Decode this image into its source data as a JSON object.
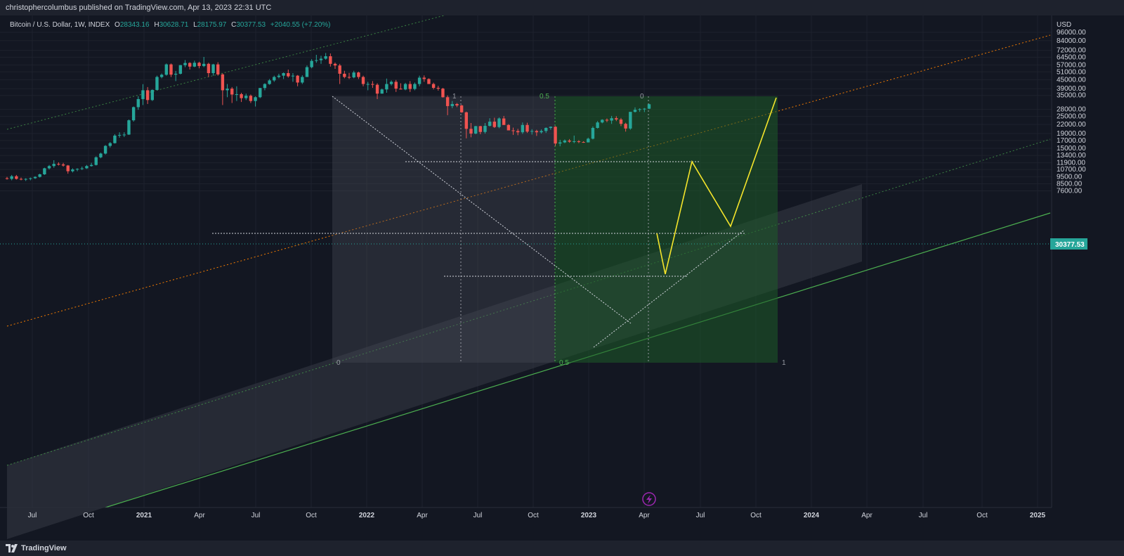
{
  "header": {
    "published": "christophercolumbus published on TradingView.com, Apr 13, 2023 22:31 UTC"
  },
  "legend": {
    "symbol": "Bitcoin / U.S. Dollar, 1W, INDEX",
    "o_label": "O",
    "o": "28343.16",
    "h_label": "H",
    "h": "30628.71",
    "l_label": "L",
    "l": "28175.97",
    "c_label": "C",
    "c": "30377.53",
    "change": "+2040.55 (+7.20%)"
  },
  "footer": {
    "brand": "TradingView"
  },
  "colors": {
    "background": "#131722",
    "up": "#26a69a",
    "down": "#ef5350",
    "channel_green": "#4caf50",
    "channel_orange": "#f57c00",
    "projection": "#f5e52b",
    "fib_green": "#2e7d32",
    "price_label_bg": "#26a69a"
  },
  "chart_data": {
    "type": "candlestick",
    "axis_unit": "USD",
    "scale": "log",
    "ylim": [
      7000,
      110000
    ],
    "y_ticks": [
      "96000.00",
      "84000.00",
      "72000.00",
      "64500.00",
      "57000.00",
      "51000.00",
      "45000.00",
      "39000.00",
      "35000.00",
      "28000.00",
      "25000.00",
      "22000.00",
      "19000.00",
      "17000.00",
      "15000.00",
      "13400.00",
      "11900.00",
      "10700.00",
      "9500.00",
      "8500.00",
      "7600.00"
    ],
    "x_ticks": [
      "Jul",
      "Oct",
      "2021",
      "Apr",
      "Jul",
      "Oct",
      "2022",
      "Apr",
      "Jul",
      "Oct",
      "2023",
      "Apr",
      "Jul",
      "Oct",
      "2024",
      "Apr",
      "Jul",
      "Oct",
      "2025"
    ],
    "last_price": "30377.53",
    "fib_labels": {
      "top_left": "1",
      "top_mid": "0.5",
      "top_right": "0",
      "bottom_left": "0",
      "bottom_mid": "0.5",
      "bottom_right": "1"
    },
    "candles_approx": [
      [
        9300,
        9500,
        9100,
        9200
      ],
      [
        9200,
        9800,
        9000,
        9600
      ],
      [
        9600,
        9800,
        9100,
        9200
      ],
      [
        9200,
        9400,
        9000,
        9100
      ],
      [
        9100,
        9300,
        8900,
        9200
      ],
      [
        9200,
        9400,
        9000,
        9300
      ],
      [
        9300,
        9600,
        9200,
        9500
      ],
      [
        9500,
        10000,
        9400,
        9900
      ],
      [
        9900,
        11000,
        9800,
        10900
      ],
      [
        10900,
        11500,
        10700,
        11300
      ],
      [
        11300,
        12400,
        11000,
        11700
      ],
      [
        11700,
        12000,
        11400,
        11600
      ],
      [
        11600,
        11900,
        11200,
        11400
      ],
      [
        11400,
        11500,
        10000,
        10400
      ],
      [
        10400,
        10900,
        10200,
        10700
      ],
      [
        10700,
        10900,
        10400,
        10800
      ],
      [
        10800,
        11200,
        10600,
        10900
      ],
      [
        10900,
        11500,
        10800,
        11300
      ],
      [
        11300,
        11900,
        11200,
        11500
      ],
      [
        11500,
        13200,
        11400,
        13000
      ],
      [
        13000,
        14000,
        12800,
        13800
      ],
      [
        13800,
        15800,
        13600,
        15600
      ],
      [
        15600,
        16600,
        15200,
        16300
      ],
      [
        16300,
        18800,
        16200,
        18400
      ],
      [
        18400,
        19400,
        17800,
        18600
      ],
      [
        18600,
        19400,
        18000,
        18700
      ],
      [
        18700,
        23800,
        18600,
        23500
      ],
      [
        23500,
        29300,
        23000,
        29000
      ],
      [
        29000,
        34500,
        27800,
        33000
      ],
      [
        33000,
        41900,
        30000,
        38000
      ],
      [
        38000,
        40000,
        30500,
        32500
      ],
      [
        32500,
        38500,
        32000,
        38200
      ],
      [
        38200,
        48000,
        38000,
        47000
      ],
      [
        47000,
        49700,
        46000,
        48700
      ],
      [
        48700,
        58300,
        48000,
        57500
      ],
      [
        57500,
        58300,
        47000,
        48800
      ],
      [
        48800,
        51800,
        44000,
        49500
      ],
      [
        49500,
        57000,
        49000,
        56800
      ],
      [
        56800,
        61600,
        55000,
        58800
      ],
      [
        58800,
        59500,
        53000,
        55500
      ],
      [
        55500,
        61000,
        55000,
        59000
      ],
      [
        59000,
        60000,
        54000,
        56000
      ],
      [
        56000,
        64800,
        55000,
        58000
      ],
      [
        58000,
        59000,
        47000,
        50000
      ],
      [
        50000,
        58000,
        48000,
        57500
      ],
      [
        57500,
        59500,
        48000,
        49000
      ],
      [
        49000,
        49800,
        30000,
        38000
      ],
      [
        38000,
        42000,
        34000,
        39000
      ],
      [
        39000,
        40000,
        31000,
        35500
      ],
      [
        35500,
        40500,
        32000,
        35700
      ],
      [
        35700,
        36500,
        31500,
        33500
      ],
      [
        33500,
        36000,
        32500,
        34800
      ],
      [
        34800,
        35500,
        31000,
        32000
      ],
      [
        32000,
        34500,
        29300,
        34000
      ],
      [
        34000,
        39500,
        33500,
        39400
      ],
      [
        39400,
        42500,
        38000,
        42000
      ],
      [
        42000,
        45500,
        41500,
        44500
      ],
      [
        44500,
        48000,
        43500,
        47000
      ],
      [
        47000,
        49500,
        46000,
        48000
      ],
      [
        48000,
        50500,
        45500,
        50000
      ],
      [
        50000,
        52900,
        46500,
        47500
      ],
      [
        47500,
        50000,
        43500,
        48000
      ],
      [
        48000,
        48500,
        40500,
        43000
      ],
      [
        43000,
        48300,
        42000,
        47000
      ],
      [
        47000,
        56500,
        47000,
        55000
      ],
      [
        55000,
        62500,
        54000,
        60800
      ],
      [
        60800,
        67000,
        59000,
        61500
      ],
      [
        61500,
        66000,
        58000,
        63000
      ],
      [
        63000,
        69000,
        62000,
        65500
      ],
      [
        65500,
        68500,
        55500,
        58000
      ],
      [
        58000,
        59200,
        53500,
        56500
      ],
      [
        56500,
        58000,
        42000,
        49500
      ],
      [
        49500,
        51900,
        46000,
        47000
      ],
      [
        47000,
        50200,
        45500,
        46700
      ],
      [
        46700,
        51900,
        46000,
        50500
      ],
      [
        50500,
        51200,
        45500,
        47000
      ],
      [
        47000,
        48000,
        40500,
        42000
      ],
      [
        42000,
        43500,
        38000,
        42000
      ],
      [
        42000,
        44000,
        39500,
        41500
      ],
      [
        41500,
        42500,
        33000,
        36000
      ],
      [
        36000,
        39000,
        36000,
        38500
      ],
      [
        38500,
        45800,
        36500,
        42000
      ],
      [
        42000,
        44500,
        41000,
        43500
      ],
      [
        43500,
        44800,
        37000,
        39000
      ],
      [
        39000,
        42500,
        38500,
        38500
      ],
      [
        38500,
        42800,
        38000,
        42000
      ],
      [
        42000,
        44000,
        37000,
        38800
      ],
      [
        38800,
        43000,
        38000,
        42000
      ],
      [
        42000,
        48000,
        40500,
        46500
      ],
      [
        46500,
        48200,
        43500,
        45500
      ],
      [
        45500,
        46000,
        42500,
        42000
      ],
      [
        42000,
        42900,
        38500,
        39500
      ],
      [
        39500,
        40800,
        37800,
        39000
      ],
      [
        39000,
        39500,
        33800,
        34000
      ],
      [
        34000,
        35000,
        25500,
        29500
      ],
      [
        29500,
        32000,
        28500,
        30500
      ],
      [
        30500,
        31000,
        29000,
        29800
      ],
      [
        29800,
        30100,
        26500,
        26700
      ],
      [
        26700,
        27000,
        17600,
        20500
      ],
      [
        20500,
        22500,
        17900,
        19000
      ],
      [
        19000,
        21500,
        18800,
        21400
      ],
      [
        21400,
        21500,
        18800,
        19500
      ],
      [
        19500,
        22500,
        19000,
        21500
      ],
      [
        21500,
        24300,
        21300,
        23000
      ],
      [
        23000,
        24500,
        20800,
        21100
      ],
      [
        21100,
        24600,
        20700,
        24200
      ],
      [
        24200,
        25200,
        22600,
        21800
      ],
      [
        21800,
        22100,
        20100,
        20000
      ],
      [
        20000,
        20900,
        18600,
        19800
      ],
      [
        19800,
        20500,
        18500,
        19400
      ],
      [
        19400,
        22700,
        18900,
        21800
      ],
      [
        21800,
        22600,
        19200,
        19600
      ],
      [
        19600,
        20400,
        18700,
        19800
      ],
      [
        19800,
        20200,
        18300,
        19400
      ],
      [
        19400,
        20300,
        19000,
        19800
      ],
      [
        19800,
        21000,
        19200,
        20800
      ],
      [
        20800,
        21300,
        20200,
        21200
      ],
      [
        21200,
        21400,
        15600,
        16200
      ],
      [
        16200,
        17200,
        15500,
        16500
      ],
      [
        16500,
        17300,
        16300,
        17000
      ],
      [
        17000,
        17400,
        16400,
        16700
      ],
      [
        16700,
        18400,
        16300,
        16800
      ],
      [
        16800,
        17100,
        16300,
        16600
      ],
      [
        16600,
        16800,
        16400,
        16500
      ],
      [
        16500,
        17800,
        16500,
        17500
      ],
      [
        17500,
        21300,
        17300,
        20800
      ],
      [
        20800,
        23200,
        20600,
        22700
      ],
      [
        22700,
        23900,
        22400,
        23700
      ],
      [
        23700,
        24200,
        22800,
        23400
      ],
      [
        23400,
        25200,
        22200,
        24300
      ],
      [
        24300,
        25100,
        23200,
        23800
      ],
      [
        23800,
        24400,
        21400,
        22200
      ],
      [
        22200,
        22600,
        19600,
        20600
      ],
      [
        20600,
        26500,
        20200,
        26900
      ],
      [
        26900,
        28900,
        26600,
        27800
      ],
      [
        27800,
        28500,
        26900,
        28100
      ],
      [
        28100,
        28600,
        26800,
        28300
      ],
      [
        28300,
        30600,
        28100,
        30377.53
      ]
    ],
    "annotations": [
      "Rising parallel channel (green lower rail, orange dashed middle, green dashed upper)",
      "Shaded grey channel band",
      "Fibonacci time/price boxes (grey and green)",
      "Yellow projection path to ~69000 by Nov 2023",
      "Dotted horizontal levels near 48000, 32000, 25500"
    ]
  }
}
